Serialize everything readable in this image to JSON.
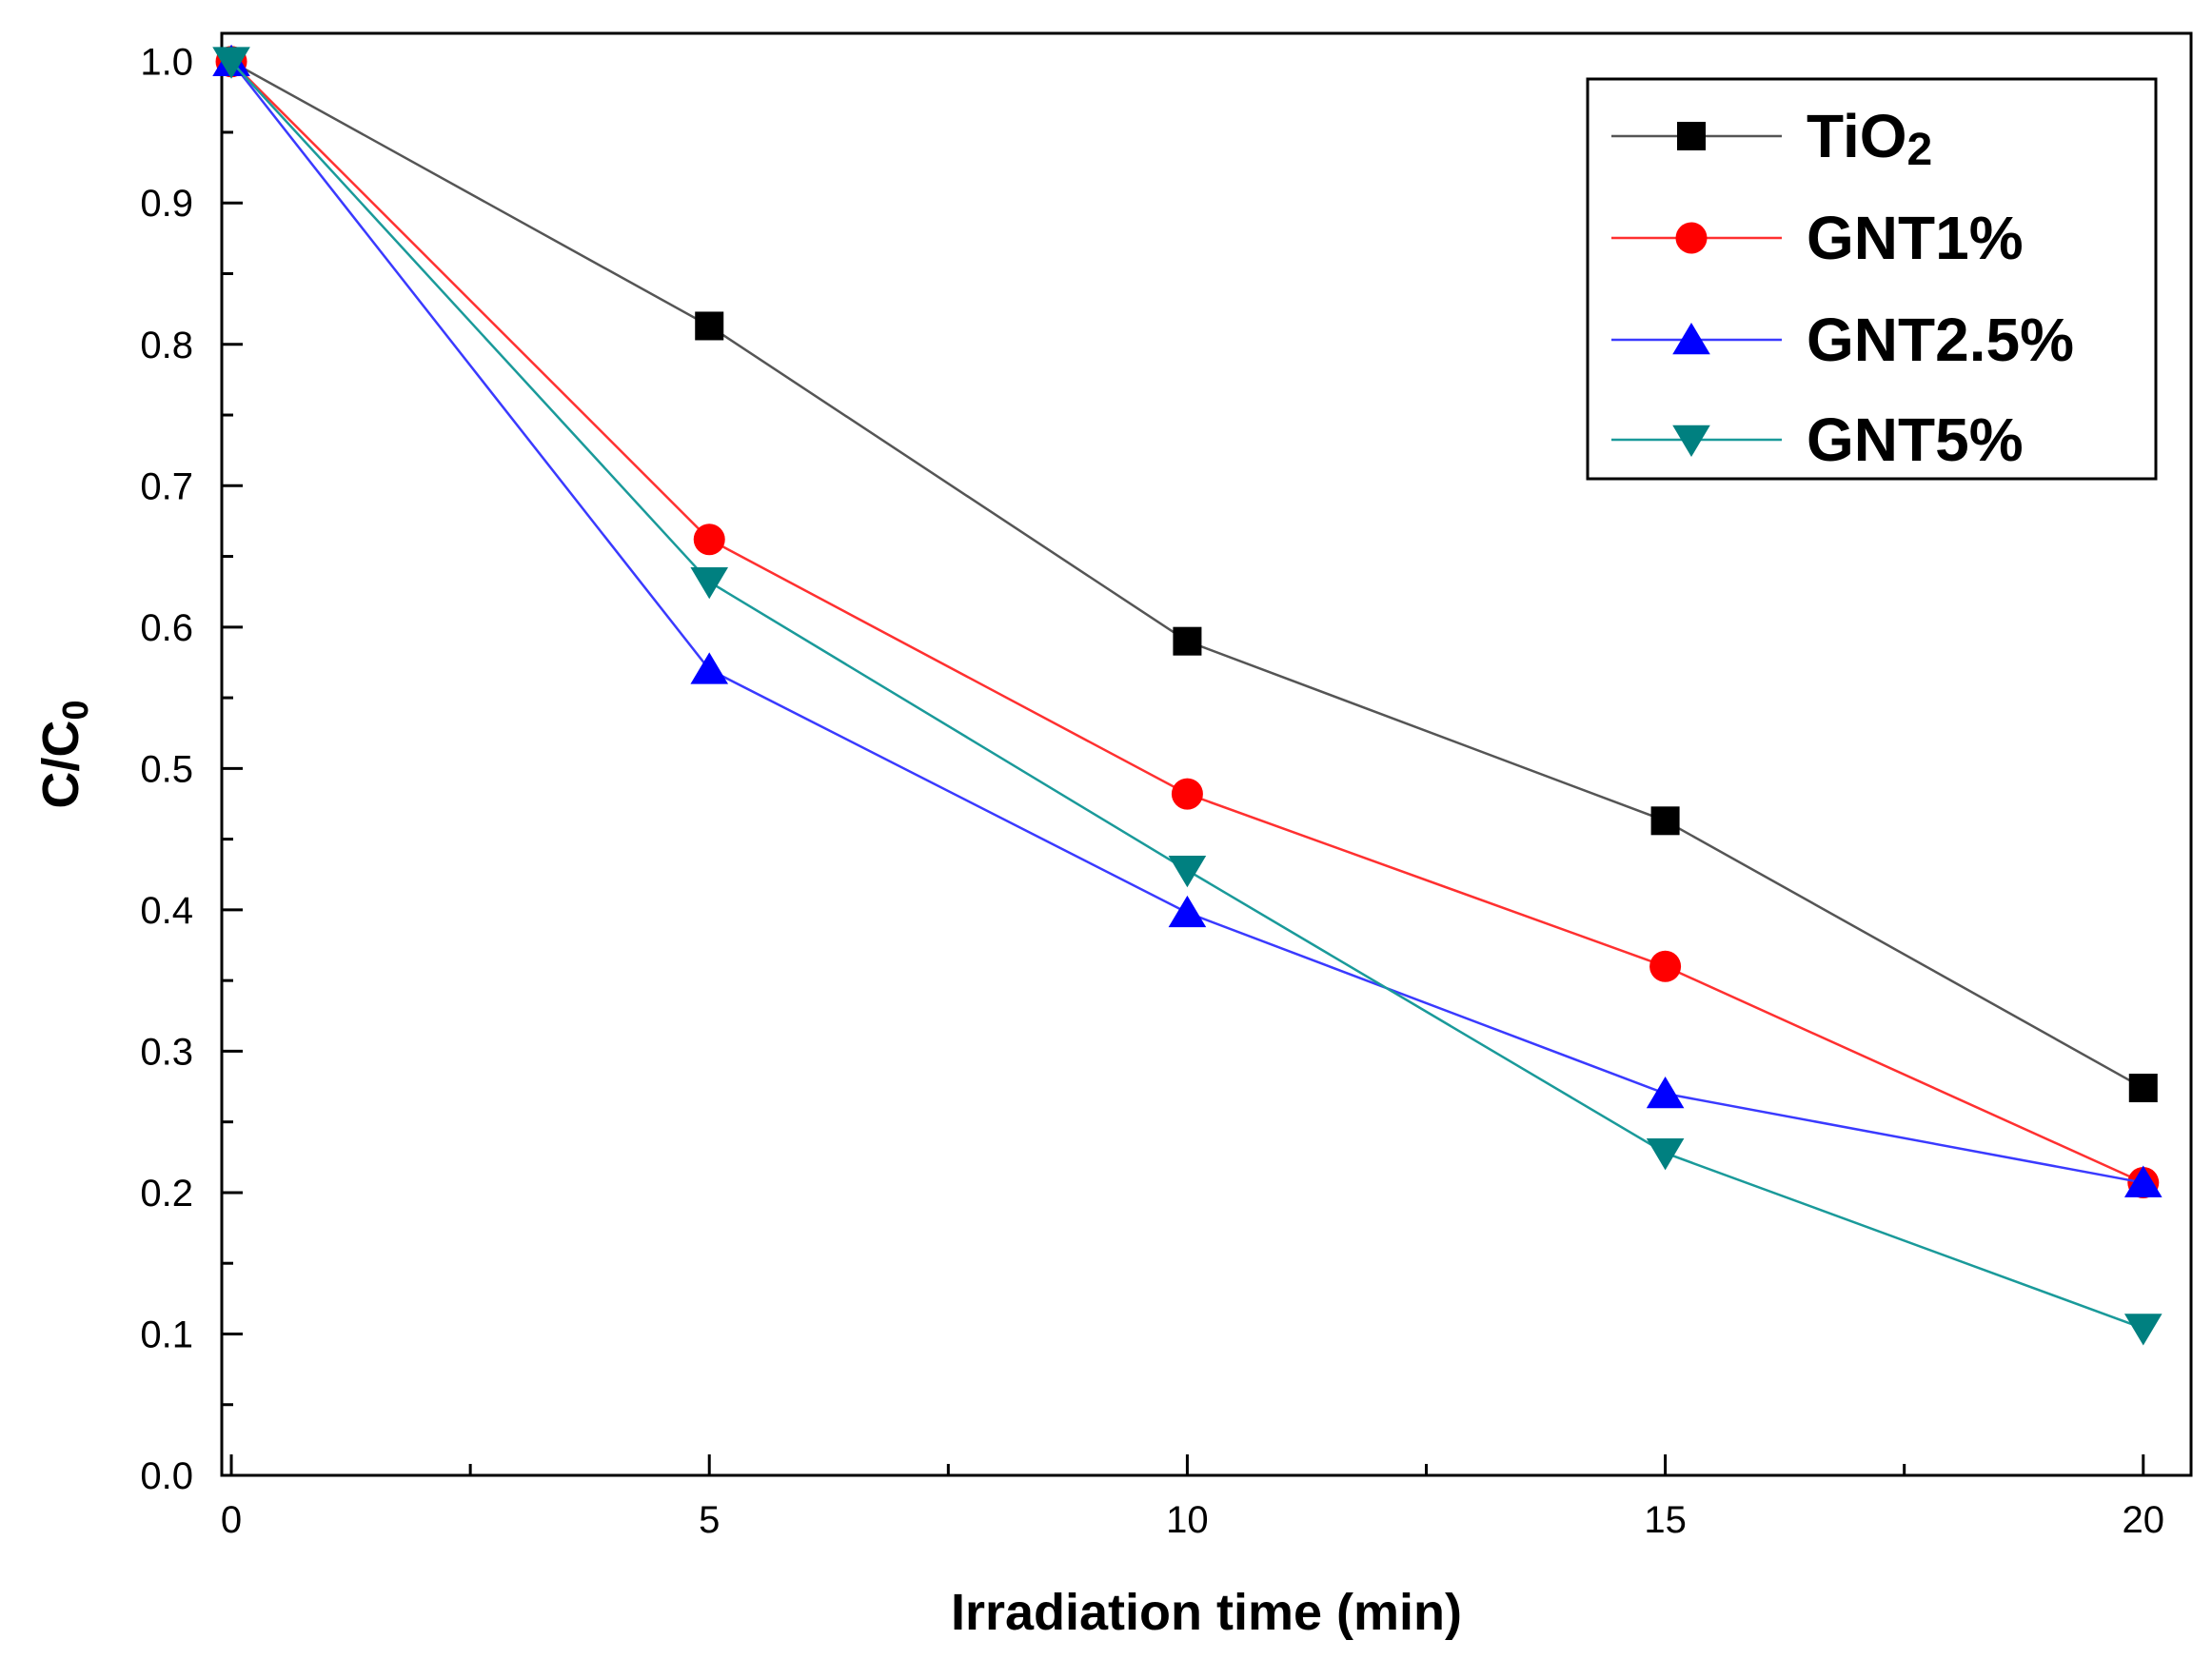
{
  "chart_data": {
    "type": "line",
    "title": "",
    "xlabel": "Irradiation time (min)",
    "ylabel": "C/C0",
    "ylabel_main": "C/C",
    "ylabel_sub": "0",
    "xlim": [
      -0.1,
      20.5
    ],
    "ylim": [
      0.0,
      1.02
    ],
    "xticks": [
      0,
      5,
      10,
      15,
      20
    ],
    "xtick_labels": [
      "0",
      "5",
      "10",
      "15",
      "20"
    ],
    "yticks": [
      0.0,
      0.1,
      0.2,
      0.3,
      0.4,
      0.5,
      0.6,
      0.7,
      0.8,
      0.9,
      1.0
    ],
    "ytick_labels": [
      "0.0",
      "0.1",
      "0.2",
      "0.3",
      "0.4",
      "0.5",
      "0.6",
      "0.7",
      "0.8",
      "0.9",
      "1.0"
    ],
    "grid": false,
    "legend_position": "top-right",
    "x": [
      0,
      5,
      10,
      15,
      20
    ],
    "series": [
      {
        "name": "TiO2",
        "label_main": "TiO",
        "label_sub": "2",
        "values": [
          1.0,
          0.813,
          0.59,
          0.463,
          0.274
        ],
        "color": "#000000",
        "line_color": "#555555",
        "marker": "square"
      },
      {
        "name": "GNT1%",
        "label_main": "GNT1%",
        "label_sub": "",
        "values": [
          1.0,
          0.662,
          0.482,
          0.36,
          0.207
        ],
        "color": "#ff0000",
        "line_color": "#ff3030",
        "marker": "circle"
      },
      {
        "name": "GNT2.5%",
        "label_main": "GNT2.5%",
        "label_sub": "",
        "values": [
          1.0,
          0.57,
          0.398,
          0.27,
          0.207
        ],
        "color": "#0000ff",
        "line_color": "#3a3aff",
        "marker": "triangle-up"
      },
      {
        "name": "GNT5%",
        "label_main": "GNT5%",
        "label_sub": "",
        "values": [
          1.0,
          0.632,
          0.428,
          0.228,
          0.104
        ],
        "color": "#008080",
        "line_color": "#1a9a9a",
        "marker": "triangle-down"
      }
    ]
  }
}
